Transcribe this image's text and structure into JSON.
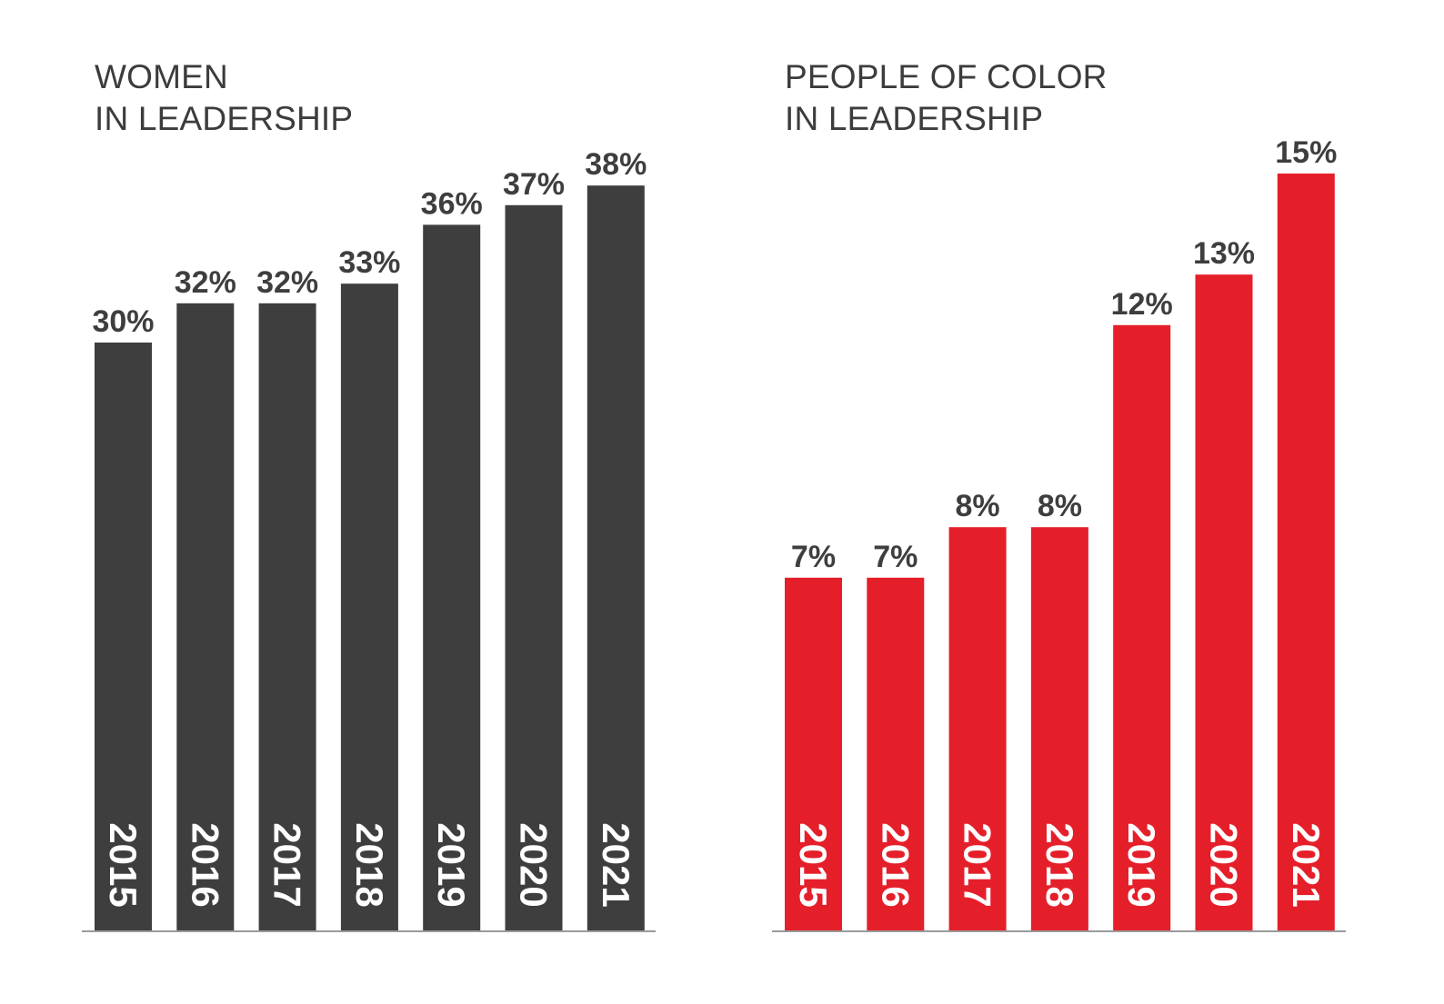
{
  "chart_data": [
    {
      "type": "bar",
      "title_lines": [
        "WOMEN",
        "IN LEADERSHIP"
      ],
      "categories": [
        "2015",
        "2016",
        "2017",
        "2018",
        "2019",
        "2020",
        "2021"
      ],
      "values": [
        30,
        32,
        32,
        33,
        36,
        37,
        38
      ],
      "value_labels": [
        "30%",
        "32%",
        "32%",
        "33%",
        "36%",
        "37%",
        "38%"
      ],
      "unit": "%",
      "ylim": [
        0,
        38
      ],
      "color": "#3d3e3d",
      "grid": false,
      "legend": "none"
    },
    {
      "type": "bar",
      "title_lines": [
        "PEOPLE OF COLOR",
        "IN LEADERSHIP"
      ],
      "categories": [
        "2015",
        "2016",
        "2017",
        "2018",
        "2019",
        "2020",
        "2021"
      ],
      "values": [
        7,
        7,
        8,
        8,
        12,
        13,
        15
      ],
      "value_labels": [
        "7%",
        "7%",
        "8%",
        "8%",
        "12%",
        "13%",
        "15%"
      ],
      "unit": "%",
      "ylim": [
        0,
        15
      ],
      "color": "#e51f2a",
      "grid": false,
      "legend": "none"
    }
  ]
}
